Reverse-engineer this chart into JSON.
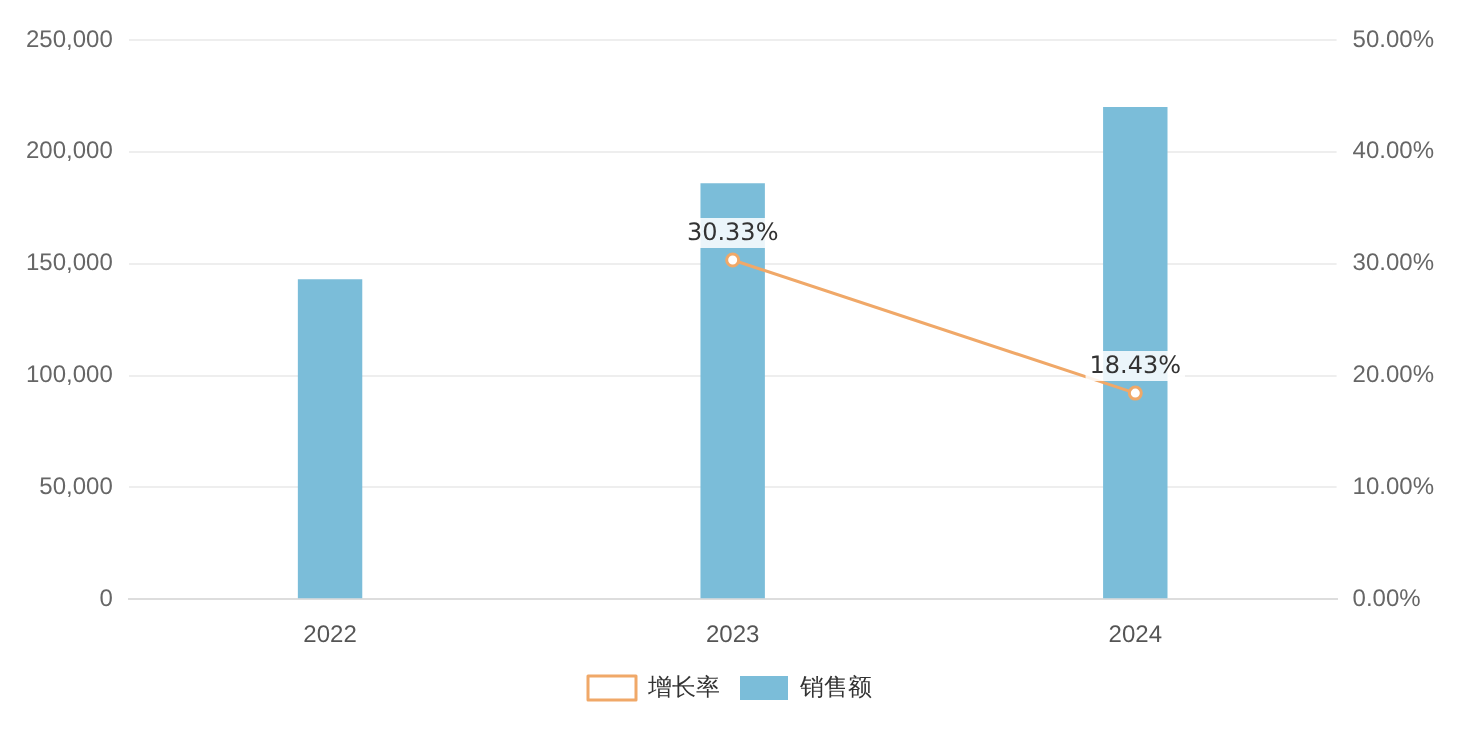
{
  "chart_data": {
    "type": "bar",
    "categories": [
      "2022",
      "2023",
      "2024"
    ],
    "series": [
      {
        "name": "销售额",
        "color": "#7bbdd9",
        "values": [
          143000,
          186000,
          220000
        ]
      },
      {
        "name": "增长率",
        "type": "line",
        "axis": "y2",
        "color": "#f0a868",
        "values": [
          null,
          30.33,
          18.43
        ],
        "value_labels": [
          null,
          "30.33%",
          "18.43%"
        ],
        "marker": "circle"
      }
    ],
    "ylim": [
      0,
      250000
    ],
    "yticks": [
      0,
      {
        "value": 50000,
        "label": "50,000"
      },
      {
        "value": 100000,
        "label": "100,000"
      },
      {
        "value": 150000,
        "label": "150,000"
      },
      {
        "value": 200000,
        "label": "200,000"
      },
      {
        "value": 250000,
        "label": "250,000"
      }
    ],
    "y2lim": [
      0,
      50
    ],
    "y2ticks": [
      {
        "value": 0,
        "label": "0.00%"
      },
      {
        "value": 10,
        "label": "10.00%"
      },
      {
        "value": 20,
        "label": "20.00%"
      },
      {
        "value": 30,
        "label": "30.00%"
      },
      {
        "value": 40,
        "label": "40.00%"
      },
      {
        "value": 50,
        "label": "50.00%"
      }
    ],
    "grid": "y",
    "legend": "bottom"
  }
}
